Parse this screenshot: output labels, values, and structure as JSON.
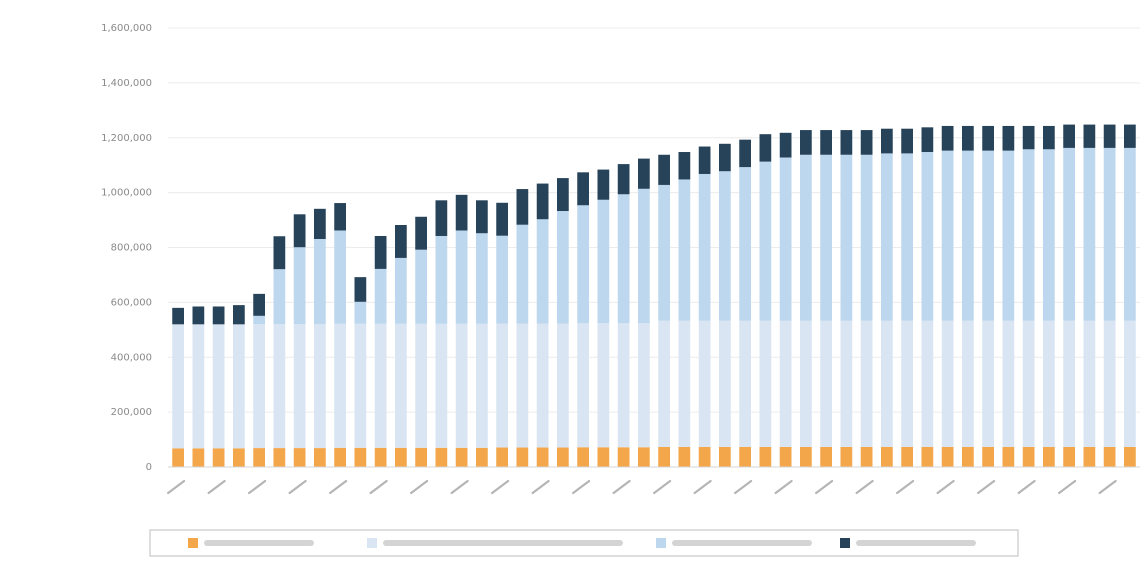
{
  "chart_data": {
    "type": "bar",
    "stacked": true,
    "title": "",
    "xlabel": "",
    "ylabel": "",
    "ylim": [
      0,
      1600000
    ],
    "y_ticks": [
      0,
      200000,
      400000,
      600000,
      800000,
      1000000,
      1200000,
      1400000,
      1600000
    ],
    "y_tick_labels": [
      "0",
      "200,000",
      "400,000",
      "600,000",
      "800,000",
      "1,000,000",
      "1,200,000",
      "1,400,000",
      "1,600,000"
    ],
    "grid": true,
    "legend_position": "bottom",
    "category_count": 48,
    "colors": {
      "series1": "#f3a64a",
      "series2": "#d9e5f2",
      "series3": "#bcd7ee",
      "series4": "#27435a",
      "grid": "#ececec",
      "axis": "#d6d6d6"
    },
    "series": [
      {
        "color": "#f3a64a",
        "values": [
          68000,
          68000,
          68000,
          68000,
          69000,
          69000,
          69000,
          69000,
          70000,
          70000,
          70000,
          70000,
          70000,
          70000,
          70000,
          70000,
          71000,
          71000,
          71000,
          71000,
          72000,
          72000,
          72000,
          72000,
          73000,
          73000,
          73000,
          73000,
          73000,
          73000,
          73000,
          73000,
          73000,
          73000,
          73000,
          73000,
          73000,
          73000,
          73000,
          73000,
          73000,
          73000,
          73000,
          73000,
          73000,
          73000,
          73000,
          73000
        ]
      },
      {
        "color": "#d9e5f2",
        "values": [
          452000,
          452000,
          452000,
          452000,
          452000,
          452000,
          452000,
          452000,
          452000,
          452000,
          452000,
          452000,
          452000,
          452000,
          452000,
          452000,
          452000,
          452000,
          452000,
          452000,
          452000,
          452000,
          452000,
          452000,
          460000,
          460000,
          460000,
          460000,
          460000,
          460000,
          460000,
          460000,
          460000,
          460000,
          460000,
          460000,
          460000,
          460000,
          460000,
          460000,
          460000,
          460000,
          460000,
          460000,
          460000,
          460000,
          460000,
          460000
        ]
      },
      {
        "color": "#bcd7ee",
        "values": [
          0,
          0,
          0,
          0,
          30000,
          200000,
          280000,
          310000,
          340000,
          80000,
          200000,
          240000,
          270000,
          320000,
          340000,
          330000,
          320000,
          360000,
          380000,
          410000,
          430000,
          450000,
          470000,
          490000,
          495000,
          515000,
          535000,
          545000,
          560000,
          580000,
          595000,
          605000,
          605000,
          605000,
          605000,
          610000,
          610000,
          615000,
          620000,
          620000,
          620000,
          620000,
          625000,
          625000,
          630000,
          630000,
          630000,
          630000
        ]
      },
      {
        "color": "#27435a",
        "values": [
          60000,
          65000,
          65000,
          70000,
          80000,
          120000,
          120000,
          110000,
          100000,
          90000,
          120000,
          120000,
          120000,
          130000,
          130000,
          120000,
          120000,
          130000,
          130000,
          120000,
          120000,
          110000,
          110000,
          110000,
          110000,
          100000,
          100000,
          100000,
          100000,
          100000,
          90000,
          90000,
          90000,
          90000,
          90000,
          90000,
          90000,
          90000,
          90000,
          90000,
          90000,
          90000,
          85000,
          85000,
          85000,
          85000,
          85000,
          85000
        ]
      }
    ]
  }
}
